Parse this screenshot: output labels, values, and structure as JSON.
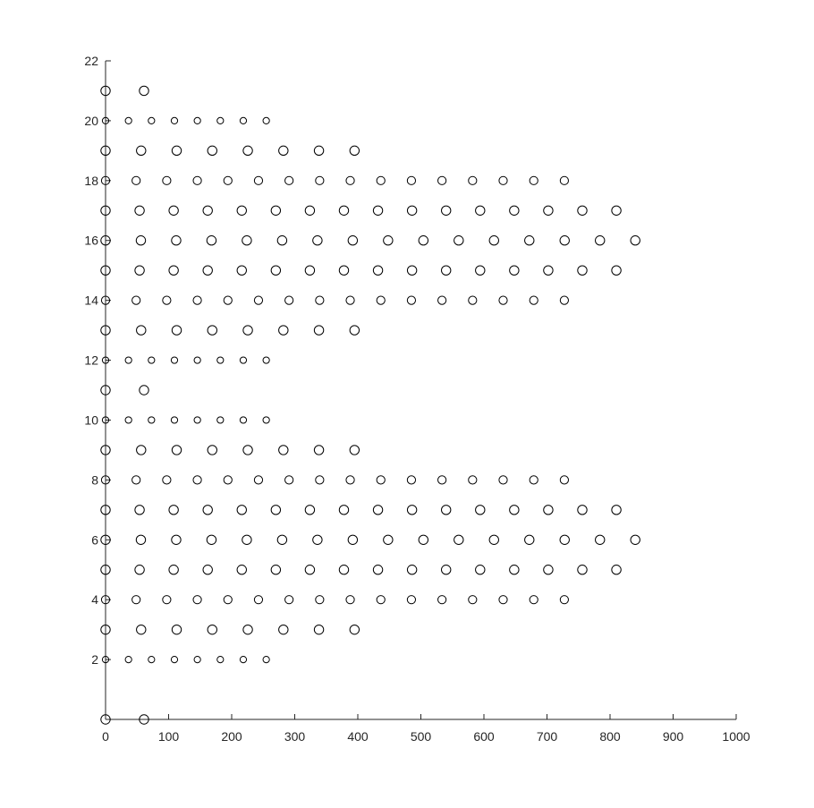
{
  "chart_data": {
    "type": "scatter",
    "title": "",
    "xlabel": "",
    "ylabel": "",
    "xlim": [
      0,
      1000
    ],
    "ylim": [
      0,
      22
    ],
    "grid": false,
    "legend": "none",
    "marker": "open-circle",
    "marker_color": "#000000",
    "axis_color": "#262626",
    "x_ticks": [
      0,
      100,
      200,
      300,
      400,
      500,
      600,
      700,
      800,
      900,
      1000
    ],
    "x_tick_labels": [
      "0",
      "100",
      "200",
      "300",
      "400",
      "500",
      "600",
      "700",
      "800",
      "900",
      "1000"
    ],
    "y_ticks": [
      2,
      4,
      6,
      8,
      10,
      12,
      14,
      16,
      18,
      20,
      22
    ],
    "y_tick_labels": [
      "2",
      "4",
      "6",
      "8",
      "10",
      "12",
      "14",
      "16",
      "18",
      "20",
      "22"
    ],
    "rows": [
      {
        "y": 0,
        "x_start": 0,
        "x_step": 61.0,
        "count": 2,
        "marker_size": "large"
      },
      {
        "y": 2,
        "x_start": 0,
        "x_step": 36.4,
        "count": 8,
        "marker_size": "small"
      },
      {
        "y": 3,
        "x_start": 0,
        "x_step": 56.4,
        "count": 8,
        "marker_size": "large"
      },
      {
        "y": 4,
        "x_start": 0,
        "x_step": 48.5,
        "count": 16,
        "marker_size": "medium"
      },
      {
        "y": 5,
        "x_start": 0,
        "x_step": 54.0,
        "count": 16,
        "marker_size": "large"
      },
      {
        "y": 6,
        "x_start": 0,
        "x_step": 56.0,
        "count": 16,
        "marker_size": "large"
      },
      {
        "y": 7,
        "x_start": 0,
        "x_step": 54.0,
        "count": 16,
        "marker_size": "large"
      },
      {
        "y": 8,
        "x_start": 0,
        "x_step": 48.5,
        "count": 16,
        "marker_size": "medium"
      },
      {
        "y": 9,
        "x_start": 0,
        "x_step": 56.4,
        "count": 8,
        "marker_size": "large"
      },
      {
        "y": 10,
        "x_start": 0,
        "x_step": 36.4,
        "count": 8,
        "marker_size": "small"
      },
      {
        "y": 11,
        "x_start": 0,
        "x_step": 61.0,
        "count": 2,
        "marker_size": "large"
      },
      {
        "y": 12,
        "x_start": 0,
        "x_step": 36.4,
        "count": 8,
        "marker_size": "small"
      },
      {
        "y": 13,
        "x_start": 0,
        "x_step": 56.4,
        "count": 8,
        "marker_size": "large"
      },
      {
        "y": 14,
        "x_start": 0,
        "x_step": 48.5,
        "count": 16,
        "marker_size": "medium"
      },
      {
        "y": 15,
        "x_start": 0,
        "x_step": 54.0,
        "count": 16,
        "marker_size": "large"
      },
      {
        "y": 16,
        "x_start": 0,
        "x_step": 56.0,
        "count": 16,
        "marker_size": "large"
      },
      {
        "y": 17,
        "x_start": 0,
        "x_step": 54.0,
        "count": 16,
        "marker_size": "large"
      },
      {
        "y": 18,
        "x_start": 0,
        "x_step": 48.5,
        "count": 16,
        "marker_size": "medium"
      },
      {
        "y": 19,
        "x_start": 0,
        "x_step": 56.4,
        "count": 8,
        "marker_size": "large"
      },
      {
        "y": 20,
        "x_start": 0,
        "x_step": 36.4,
        "count": 8,
        "marker_size": "small"
      },
      {
        "y": 21,
        "x_start": 0,
        "x_step": 61.0,
        "count": 2,
        "marker_size": "large"
      }
    ]
  }
}
